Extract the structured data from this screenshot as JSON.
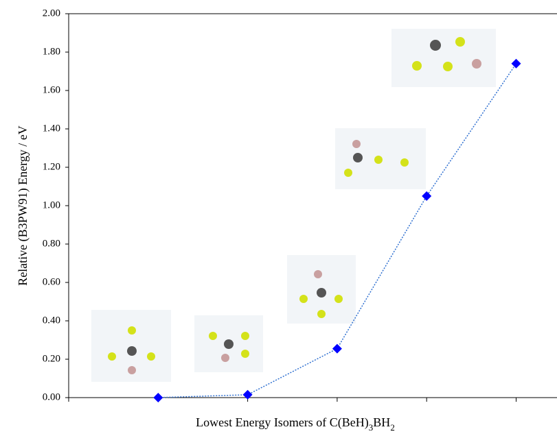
{
  "chart_data": {
    "type": "line",
    "xlabel_parts": [
      "Lowest Energy Isomers of  C(BeH)",
      "3",
      "BH",
      "2"
    ],
    "ylabel": "Relative  (B3PW91) Energy / eV",
    "x": [
      1,
      2,
      3,
      4,
      5
    ],
    "values": [
      0,
      0.015,
      0.255,
      1.05,
      1.74
    ],
    "color": "#0000ff",
    "line_color": "#2e6fd0",
    "xlim": [
      0,
      5.45
    ],
    "xticks": [
      0,
      1,
      2,
      3,
      4,
      5
    ],
    "ylim": [
      0,
      2
    ],
    "yticks": [
      {
        "value": 0,
        "label": "0.00"
      },
      {
        "value": 0.2,
        "label": "0.20"
      },
      {
        "value": 0.4,
        "label": "0.40"
      },
      {
        "value": 0.6,
        "label": "0.60"
      },
      {
        "value": 0.8,
        "label": "0.80"
      },
      {
        "value": 1,
        "label": "1.00"
      },
      {
        "value": 1.2,
        "label": "1.20"
      },
      {
        "value": 1.4,
        "label": "1.40"
      },
      {
        "value": 1.6,
        "label": "1.60"
      },
      {
        "value": 1.8,
        "label": "1.80"
      },
      {
        "value": 2,
        "label": "2.00"
      }
    ]
  }
}
